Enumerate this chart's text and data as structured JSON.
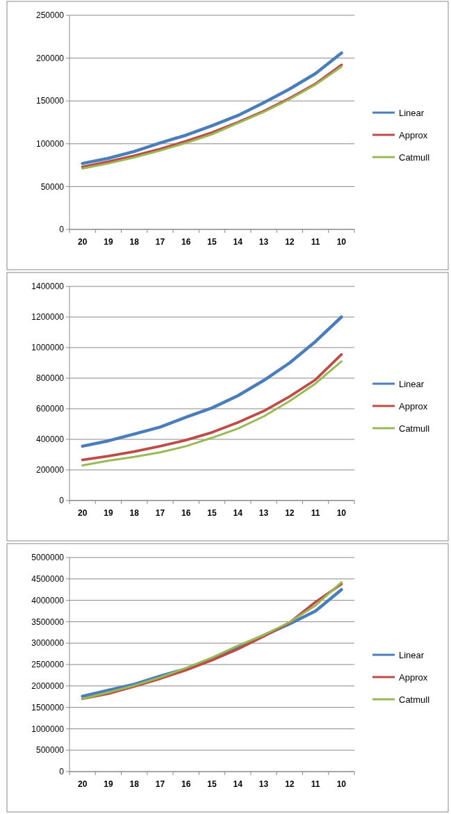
{
  "chart_data": [
    {
      "type": "line",
      "categories": [
        "20",
        "19",
        "18",
        "17",
        "16",
        "15",
        "14",
        "13",
        "12",
        "11",
        "10"
      ],
      "ylim": [
        0,
        250000
      ],
      "yticks": [
        0,
        50000,
        100000,
        150000,
        200000,
        250000
      ],
      "grid": "y",
      "legend": "right",
      "marker": "none",
      "line_style": "solid",
      "series": [
        {
          "name": "Linear",
          "color": "#4a7ebb",
          "values": [
            77000,
            83000,
            91000,
            101000,
            110000,
            121000,
            133000,
            148000,
            164000,
            182000,
            206000
          ]
        },
        {
          "name": "Approx",
          "color": "#be4b48",
          "values": [
            73000,
            79000,
            86000,
            94000,
            103000,
            113000,
            125000,
            138000,
            153000,
            170000,
            192000
          ]
        },
        {
          "name": "Catmull",
          "color": "#98b954",
          "values": [
            71000,
            77000,
            84000,
            92000,
            101000,
            111000,
            124000,
            137000,
            152000,
            169000,
            190000
          ]
        }
      ]
    },
    {
      "type": "line",
      "categories": [
        "20",
        "19",
        "18",
        "17",
        "16",
        "15",
        "14",
        "13",
        "12",
        "11",
        "10"
      ],
      "ylim": [
        0,
        1400000
      ],
      "yticks": [
        0,
        200000,
        400000,
        600000,
        800000,
        1000000,
        1200000,
        1400000
      ],
      "grid": "y",
      "legend": "right",
      "marker": "none",
      "line_style": "solid",
      "series": [
        {
          "name": "Linear",
          "color": "#4a7ebb",
          "values": [
            355000,
            390000,
            435000,
            480000,
            545000,
            605000,
            685000,
            785000,
            900000,
            1040000,
            1200000
          ]
        },
        {
          "name": "Approx",
          "color": "#be4b48",
          "values": [
            265000,
            290000,
            320000,
            355000,
            395000,
            445000,
            510000,
            585000,
            680000,
            790000,
            955000
          ]
        },
        {
          "name": "Catmull",
          "color": "#98b954",
          "values": [
            230000,
            260000,
            285000,
            315000,
            355000,
            410000,
            470000,
            550000,
            650000,
            765000,
            910000
          ]
        }
      ]
    },
    {
      "type": "line",
      "categories": [
        "20",
        "19",
        "18",
        "17",
        "16",
        "15",
        "14",
        "13",
        "12",
        "11",
        "10"
      ],
      "ylim": [
        0,
        5000000
      ],
      "yticks": [
        0,
        500000,
        1000000,
        1500000,
        2000000,
        2500000,
        3000000,
        3500000,
        4000000,
        4500000,
        5000000
      ],
      "grid": "y",
      "legend": "right",
      "marker": "none",
      "line_style": "solid",
      "series": [
        {
          "name": "Linear",
          "color": "#4a7ebb",
          "values": [
            1760000,
            1900000,
            2040000,
            2230000,
            2400000,
            2640000,
            2900000,
            3180000,
            3450000,
            3750000,
            4250000
          ]
        },
        {
          "name": "Approx",
          "color": "#be4b48",
          "values": [
            1700000,
            1820000,
            1990000,
            2170000,
            2370000,
            2600000,
            2860000,
            3160000,
            3480000,
            3960000,
            4380000
          ]
        },
        {
          "name": "Catmull",
          "color": "#98b954",
          "values": [
            1700000,
            1850000,
            2010000,
            2200000,
            2420000,
            2660000,
            2940000,
            3190000,
            3490000,
            3880000,
            4420000
          ]
        }
      ]
    }
  ]
}
